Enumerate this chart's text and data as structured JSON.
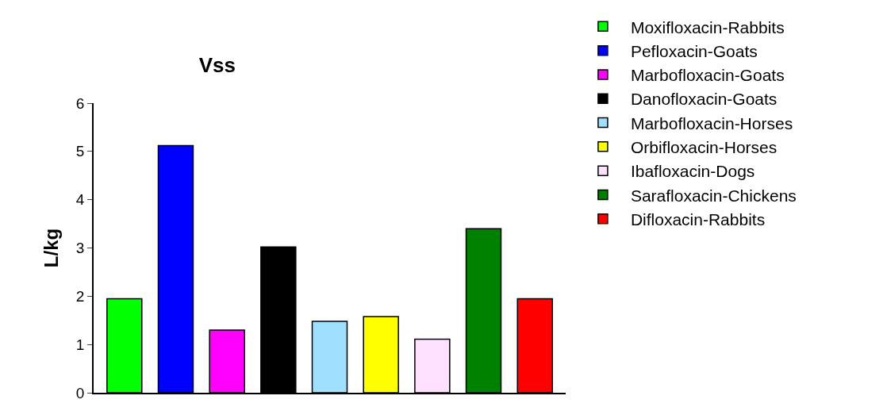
{
  "chart_data": {
    "type": "bar",
    "title": "Vss",
    "ylabel": "L/kg",
    "categories": [
      null,
      null,
      null,
      null,
      null,
      null,
      null,
      null,
      null
    ],
    "series": [
      {
        "name": "Moxifloxacin-Rabbits",
        "color": "#00ff00",
        "values": [
          1.95,
          null,
          null,
          null,
          null,
          null,
          null,
          null,
          null
        ]
      },
      {
        "name": "Pefloxacin-Goats",
        "color": "#0000ff",
        "values": [
          null,
          5.12,
          null,
          null,
          null,
          null,
          null,
          null,
          null
        ]
      },
      {
        "name": "Marbofloxacin-Goats",
        "color": "#ff00ff",
        "values": [
          null,
          null,
          1.3,
          null,
          null,
          null,
          null,
          null,
          null
        ]
      },
      {
        "name": "Danofloxacin-Goats",
        "color": "#000000",
        "values": [
          null,
          null,
          null,
          3.02,
          null,
          null,
          null,
          null,
          null
        ]
      },
      {
        "name": "Marbofloxacin-Horses",
        "color": "#a0e0ff",
        "values": [
          null,
          null,
          null,
          null,
          1.48,
          null,
          null,
          null,
          null
        ]
      },
      {
        "name": "Orbifloxacin-Horses",
        "color": "#ffff00",
        "values": [
          null,
          null,
          null,
          null,
          null,
          1.58,
          null,
          null,
          null
        ]
      },
      {
        "name": "Ibafloxacin-Dogs",
        "color": "#ffe0ff",
        "values": [
          null,
          null,
          null,
          null,
          null,
          null,
          1.11,
          null,
          null
        ]
      },
      {
        "name": "Sarafloxacin-Chickens",
        "color": "#008000",
        "values": [
          null,
          null,
          null,
          null,
          null,
          null,
          null,
          3.4,
          null
        ]
      },
      {
        "name": "Difloxacin-Rabbits",
        "color": "#ff0000",
        "values": [
          null,
          null,
          null,
          null,
          null,
          null,
          null,
          null,
          1.95
        ]
      }
    ],
    "ylim": [
      0,
      6
    ],
    "yticks": [
      0,
      1,
      2,
      3,
      4,
      5,
      6
    ],
    "legend": "top right",
    "tick_labels": "y"
  }
}
